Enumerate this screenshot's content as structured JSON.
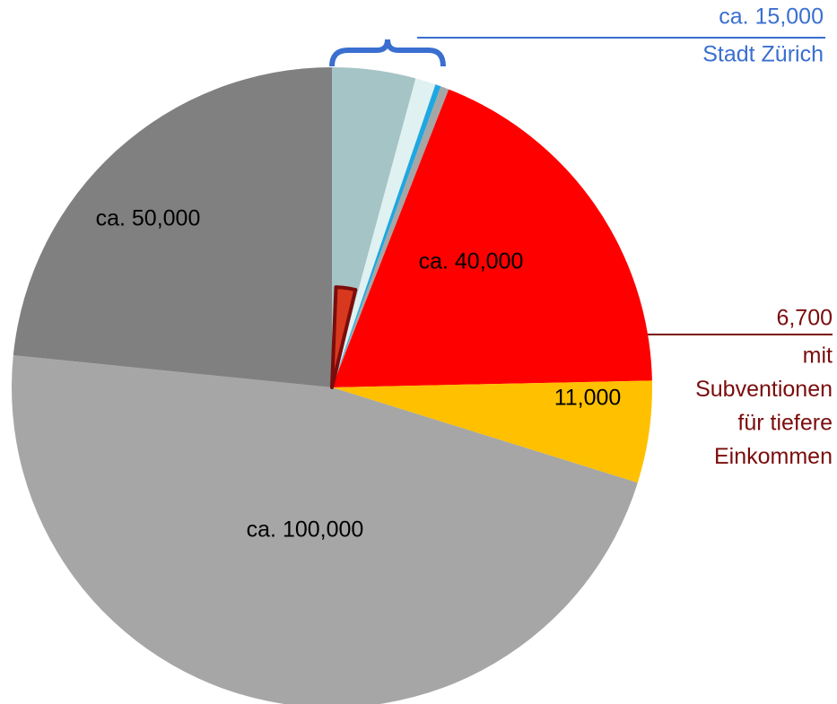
{
  "chart_data": {
    "type": "pie",
    "categories": [
      null,
      null,
      null,
      null,
      null,
      null,
      null,
      null
    ],
    "values": [
      9000,
      2200,
      600,
      900,
      40000,
      11000,
      100000,
      50000
    ],
    "value_labels": [
      null,
      null,
      null,
      null,
      "ca. 40,000",
      "11,000",
      "ca. 100,000",
      "ca. 50,000"
    ],
    "colors": [
      "#a5c4c5",
      "#dff1f1",
      "#1ea7e1",
      "#a6a6a6",
      "#ff0000",
      "#ffc000",
      "#a6a6a6",
      "#808080"
    ],
    "annotations": [
      {
        "value": 15000,
        "label": "ca. 15,000",
        "text": [
          "Stadt Zürich"
        ],
        "color": "#3a6fd0"
      },
      {
        "value": 6700,
        "label": "6,700",
        "text": [
          "mit",
          "Subventionen",
          "für tiefere",
          "Einkommen"
        ],
        "color": "#7b0c0c"
      }
    ]
  }
}
